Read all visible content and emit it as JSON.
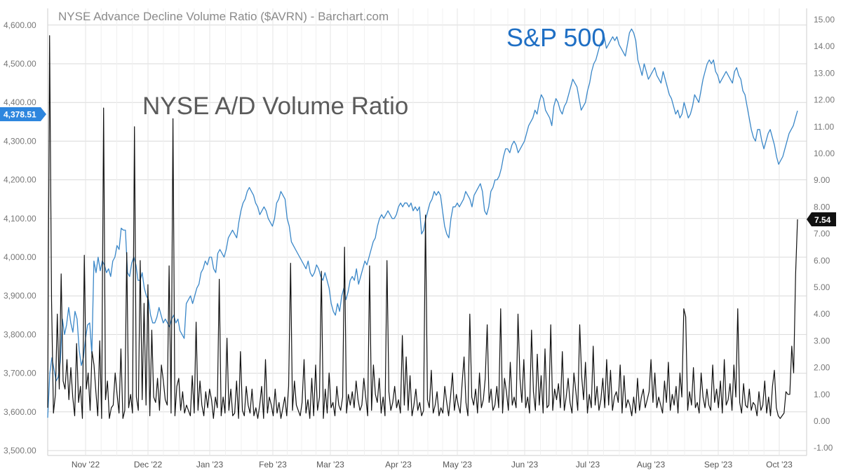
{
  "chart_data": {
    "type": "line",
    "title": "NYSE Advance Decline Volume Ratio ($AVRN) - Barchart.com",
    "annotations": [
      {
        "name": "sp500-label",
        "text": "S&P 500",
        "color": "#1f6fc4"
      },
      {
        "name": "ad-label",
        "text": "NYSE A/D Volume Ratio",
        "color": "#5b5b5b"
      }
    ],
    "x_axis": {
      "labels": [
        "Nov '22",
        "Dec '22",
        "Jan '23",
        "Feb '23",
        "Mar '23",
        "Apr '23",
        "May '23",
        "Jun '23",
        "Jul '23",
        "Aug '23",
        "Sep '23",
        "Oct '23"
      ]
    },
    "left_axis": {
      "ticks": [
        "4,600.00",
        "4,500.00",
        "4,400.00",
        "4,300.00",
        "4,200.00",
        "4,100.00",
        "4,000.00",
        "3,900.00",
        "3,800.00",
        "3,700.00",
        "3,600.00",
        "3,500.00"
      ],
      "ylim": [
        3500,
        4600
      ]
    },
    "right_axis": {
      "ticks": [
        "15.00",
        "14.00",
        "13.00",
        "12.00",
        "11.00",
        "10.00",
        "9.00",
        "8.00",
        "7.00",
        "6.00",
        "5.00",
        "4.00",
        "3.00",
        "2.00",
        "1.00",
        "0.00",
        "-1.00"
      ],
      "ylim": [
        -1,
        15
      ]
    },
    "last_values": {
      "sp500": {
        "text": "4,378.51",
        "value": 4378.51,
        "color": "#2e86de"
      },
      "ratio": {
        "text": "7.54",
        "value": 7.54,
        "color": "#111111"
      }
    },
    "series": [
      {
        "name": "S&P 500",
        "axis": "left",
        "color": "#3a87c8",
        "values": [
          3585,
          3700,
          3740,
          3710,
          3680,
          3690,
          3730,
          3840,
          3800,
          3825,
          3870,
          3830,
          3806,
          3860,
          3840,
          3760,
          3720,
          3740,
          3790,
          3825,
          3830,
          3750,
          3990,
          3960,
          4000,
          3965,
          3990,
          3980,
          3960,
          3970,
          3950,
          3990,
          4000,
          4030,
          4020,
          4075,
          4070,
          4070,
          3960,
          3950,
          3985,
          4000,
          3980,
          3940,
          3940,
          3960,
          3920,
          3900,
          3890,
          3850,
          3830,
          3830,
          3845,
          3870,
          3850,
          3830,
          3840,
          3830,
          3820,
          3840,
          3850,
          3830,
          3840,
          3810,
          3800,
          3790,
          3880,
          3890,
          3900,
          3880,
          3900,
          3920,
          3930,
          3960,
          3970,
          3990,
          3980,
          4000,
          4000,
          3970,
          3960,
          4010,
          4020,
          4010,
          4000,
          4020,
          4050,
          4060,
          4070,
          4060,
          4050,
          4090,
          4120,
          4140,
          4150,
          4170,
          4180,
          4170,
          4160,
          4140,
          4130,
          4110,
          4120,
          4130,
          4120,
          4100,
          4090,
          4080,
          4100,
          4140,
          4150,
          4170,
          4160,
          4150,
          4100,
          4080,
          4040,
          4030,
          4020,
          4010,
          4000,
          3990,
          3980,
          3970,
          3990,
          3960,
          3950,
          3960,
          3980,
          3970,
          3950,
          3940,
          3960,
          3940,
          3920,
          3880,
          3860,
          3850,
          3880,
          3860,
          3900,
          3920,
          3890,
          3910,
          3940,
          3950,
          3940,
          3970,
          3930,
          3950,
          3970,
          3990,
          3980,
          4000,
          4020,
          4040,
          4050,
          4080,
          4100,
          4110,
          4100,
          4110,
          4120,
          4110,
          4100,
          4100,
          4110,
          4130,
          4140,
          4130,
          4140,
          4140,
          4130,
          4140,
          4120,
          4130,
          4120,
          4130,
          4060,
          4070,
          4100,
          4120,
          4140,
          4150,
          4170,
          4160,
          4170,
          4160,
          4120,
          4080,
          4060,
          4050,
          4100,
          4130,
          4130,
          4140,
          4130,
          4140,
          4150,
          4170,
          4160,
          4150,
          4130,
          4160,
          4170,
          4180,
          4190,
          4170,
          4120,
          4110,
          4130,
          4170,
          4180,
          4200,
          4200,
          4210,
          4230,
          4260,
          4280,
          4280,
          4270,
          4290,
          4300,
          4290,
          4270,
          4280,
          4290,
          4300,
          4320,
          4340,
          4350,
          4360,
          4380,
          4370,
          4400,
          4420,
          4410,
          4380,
          4370,
          4360,
          4340,
          4390,
          4410,
          4400,
          4380,
          4370,
          4390,
          4400,
          4420,
          4440,
          4460,
          4450,
          4440,
          4410,
          4380,
          4390,
          4400,
          4430,
          4450,
          4480,
          4500,
          4510,
          4530,
          4550,
          4560,
          4570,
          4540,
          4550,
          4560,
          4570,
          4560,
          4570,
          4550,
          4540,
          4530,
          4520,
          4550,
          4580,
          4590,
          4580,
          4560,
          4510,
          4490,
          4470,
          4500,
          4480,
          4460,
          4470,
          4480,
          4490,
          4470,
          4460,
          4450,
          4480,
          4460,
          4440,
          4420,
          4410,
          4390,
          4370,
          4380,
          4360,
          4370,
          4400,
          4380,
          4360,
          4370,
          4390,
          4420,
          4410,
          4400,
          4430,
          4460,
          4480,
          4500,
          4510,
          4500,
          4510,
          4480,
          4470,
          4450,
          4460,
          4470,
          4480,
          4470,
          4460,
          4450,
          4480,
          4490,
          4470,
          4460,
          4430,
          4420,
          4390,
          4360,
          4330,
          4310,
          4300,
          4330,
          4330,
          4300,
          4280,
          4300,
          4320,
          4330,
          4310,
          4290,
          4260,
          4240,
          4250,
          4260,
          4280,
          4300,
          4320,
          4330,
          4340,
          4360,
          4378.51
        ]
      },
      {
        "name": "NYSE A/D Volume Ratio",
        "axis": "right",
        "color": "#111111",
        "values": [
          0.5,
          14.4,
          4.5,
          0.3,
          1.0,
          4.0,
          1.2,
          5.5,
          1.5,
          1.2,
          2.3,
          0.8,
          2.0,
          0.9,
          0.2,
          2.9,
          0.7,
          1.3,
          0.1,
          6.2,
          1.2,
          1.8,
          0.4,
          2.6,
          2.1,
          1.1,
          0.2,
          3.0,
          0.1,
          11.7,
          0.8,
          1.5,
          0.1,
          0.5,
          0.6,
          1.8,
          1.0,
          0.3,
          2.7,
          0.1,
          0.4,
          6.3,
          0.5,
          1.0,
          0.3,
          11.0,
          0.9,
          0.4,
          6.0,
          0.8,
          4.4,
          0.6,
          5.1,
          0.2,
          3.4,
          0.9,
          0.7,
          1.6,
          0.4,
          2.1,
          1.5,
          0.8,
          0.6,
          5.8,
          0.3,
          11.3,
          0.2,
          1.3,
          1.6,
          0.4,
          1.1,
          0.3,
          0.6,
          0.4,
          0.2,
          1.7,
          0.3,
          3.7,
          0.4,
          1.5,
          0.6,
          0.2,
          1.1,
          0.5,
          1.2,
          0.8,
          0.1,
          0.9,
          0.5,
          5.3,
          0.2,
          0.9,
          0.3,
          3.1,
          0.4,
          1.2,
          0.2,
          0.3,
          1.5,
          0.1,
          2.6,
          0.4,
          0.2,
          1.3,
          0.6,
          0.3,
          1.2,
          0.2,
          0.5,
          0.1,
          0.6,
          1.3,
          0.1,
          2.3,
          0.3,
          0.9,
          0.6,
          0.2,
          1.2,
          0.3,
          0.7,
          0.1,
          0.5,
          0.9,
          0.2,
          1.3,
          5.9,
          0.4,
          1.5,
          0.6,
          0.4,
          0.2,
          0.7,
          2.3,
          0.3,
          0.8,
          0.1,
          1.6,
          0.2,
          2.1,
          0.4,
          0.9,
          5.6,
          0.1,
          1.2,
          0.3,
          1.8,
          0.5,
          0.7,
          0.2,
          1.3,
          0.6,
          0.4,
          0.9,
          6.5,
          0.3,
          1.0,
          0.6,
          1.1,
          0.5,
          1.5,
          0.8,
          0.4,
          0.6,
          1.6,
          0.9,
          0.2,
          5.8,
          0.4,
          2.1,
          1.0,
          0.7,
          1.6,
          0.3,
          0.9,
          0.2,
          6.0,
          1.1,
          0.4,
          0.7,
          1.3,
          0.5,
          0.8,
          0.3,
          3.2,
          0.6,
          2.4,
          0.4,
          1.7,
          0.2,
          0.6,
          1.2,
          0.4,
          0.7,
          0.2,
          0.4,
          7.7,
          0.8,
          0.5,
          1.9,
          0.3,
          0.6,
          1.1,
          0.2,
          0.5,
          0.3,
          1.3,
          0.7,
          0.2,
          0.9,
          1.8,
          0.4,
          1.0,
          0.6,
          0.3,
          1.4,
          2.4,
          0.7,
          0.2,
          4.0,
          0.9,
          0.6,
          1.2,
          0.3,
          1.8,
          0.5,
          0.8,
          1.6,
          3.6,
          0.7,
          1.2,
          0.4,
          0.6,
          1.3,
          0.5,
          4.2,
          0.3,
          1.6,
          1.1,
          0.4,
          2.2,
          0.6,
          0.9,
          0.5,
          4.0,
          1.6,
          0.7,
          2.3,
          0.5,
          0.9,
          0.3,
          3.4,
          1.1,
          0.4,
          2.5,
          0.6,
          1.7,
          0.3,
          2.7,
          0.5,
          0.6,
          3.6,
          0.4,
          1.2,
          0.8,
          1.4,
          0.5,
          2.6,
          0.4,
          0.9,
          1.6,
          0.7,
          0.3,
          1.8,
          1.1,
          0.4,
          3.6,
          1.7,
          0.8,
          2.2,
          0.3,
          1.0,
          0.5,
          2.8,
          0.6,
          1.3,
          0.4,
          0.8,
          1.6,
          0.5,
          2.3,
          0.6,
          1.9,
          0.4,
          0.9,
          1.1,
          0.7,
          2.1,
          0.3,
          1.7,
          0.5,
          0.8,
          0.6,
          0.2,
          0.9,
          0.3,
          1.6,
          0.4,
          0.9,
          1.2,
          0.5,
          0.8,
          1.1,
          2.3,
          0.7,
          1.8,
          0.5,
          0.9,
          0.6,
          0.3,
          1.5,
          0.7,
          2.2,
          0.4,
          1.0,
          0.6,
          1.3,
          0.3,
          1.8,
          0.9,
          4.2,
          3.9,
          0.4,
          1.1,
          0.6,
          2.0,
          0.5,
          0.7,
          0.3,
          1.8,
          0.9,
          0.5,
          1.2,
          0.6,
          0.4,
          2.1,
          0.7,
          1.2,
          0.5,
          1.5,
          0.3,
          2.3,
          0.6,
          0.8,
          1.4,
          0.4,
          2.1,
          0.9,
          4.2,
          0.7,
          0.3,
          1.4,
          0.6,
          0.5,
          1.2,
          0.4,
          0.7,
          0.6,
          0.2,
          1.1,
          0.4,
          0.6,
          1.5,
          0.3,
          0.9,
          0.2,
          1.3,
          1.9,
          0.5,
          0.2,
          0.1,
          0.2,
          0.3,
          1.1,
          1.0,
          1.0,
          2.8,
          1.8,
          5.5,
          7.54
        ]
      }
    ]
  }
}
